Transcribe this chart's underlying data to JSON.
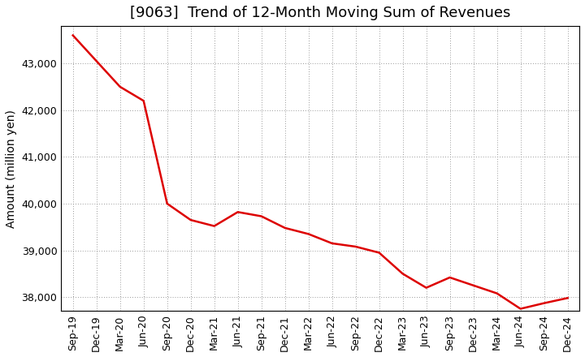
{
  "title": "[9063]  Trend of 12-Month Moving Sum of Revenues",
  "ylabel": "Amount (million yen)",
  "line_color": "#dd0000",
  "background_color": "#ffffff",
  "plot_bg_color": "#ffffff",
  "grid_color": "#999999",
  "x_labels": [
    "Sep-19",
    "Dec-19",
    "Mar-20",
    "Jun-20",
    "Sep-20",
    "Dec-20",
    "Mar-21",
    "Jun-21",
    "Sep-21",
    "Dec-21",
    "Mar-22",
    "Jun-22",
    "Sep-22",
    "Dec-22",
    "Mar-23",
    "Jun-23",
    "Sep-23",
    "Dec-23",
    "Mar-24",
    "Jun-24",
    "Sep-24",
    "Dec-24"
  ],
  "values": [
    43600,
    43050,
    42500,
    42200,
    40000,
    39650,
    39520,
    39820,
    39730,
    39480,
    39350,
    39150,
    39080,
    38950,
    38500,
    38200,
    38420,
    38250,
    38080,
    37750,
    37870,
    37980
  ],
  "ylim": [
    37700,
    43800
  ],
  "yticks": [
    38000,
    39000,
    40000,
    41000,
    42000,
    43000
  ],
  "title_fontsize": 13,
  "label_fontsize": 10,
  "tick_fontsize": 9
}
